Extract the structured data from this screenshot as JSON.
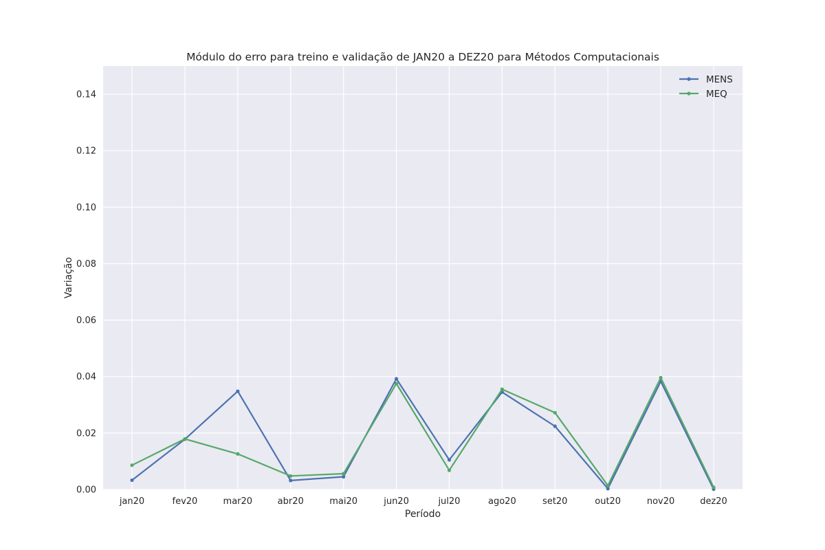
{
  "chart_data": {
    "type": "line",
    "title": "Módulo do erro para treino e validação de JAN20 a DEZ20 para Métodos Computacionais",
    "xlabel": "Período",
    "ylabel": "Variação",
    "categories": [
      "jan20",
      "fev20",
      "mar20",
      "abr20",
      "mai20",
      "jun20",
      "jul20",
      "ago20",
      "set20",
      "out20",
      "nov20",
      "dez20"
    ],
    "ylim": [
      0,
      0.15
    ],
    "yticks": [
      "0.00",
      "0.02",
      "0.04",
      "0.06",
      "0.08",
      "0.10",
      "0.12",
      "0.14"
    ],
    "ytick_values": [
      0,
      0.02,
      0.04,
      0.06,
      0.08,
      0.1,
      0.12,
      0.14
    ],
    "grid": true,
    "legend_position": "top-right",
    "background": "#eaeaf2",
    "series": [
      {
        "name": "MENS",
        "color": "#4c72b0",
        "values": [
          0.0033,
          0.0178,
          0.0348,
          0.0032,
          0.0045,
          0.0392,
          0.0105,
          0.0345,
          0.0224,
          0.0003,
          0.0383,
          0.0001
        ]
      },
      {
        "name": "MEQ",
        "color": "#55a868",
        "values": [
          0.0086,
          0.0179,
          0.0126,
          0.0048,
          0.0056,
          0.0375,
          0.0068,
          0.0355,
          0.0272,
          0.0014,
          0.0396,
          0.0008
        ]
      }
    ]
  }
}
